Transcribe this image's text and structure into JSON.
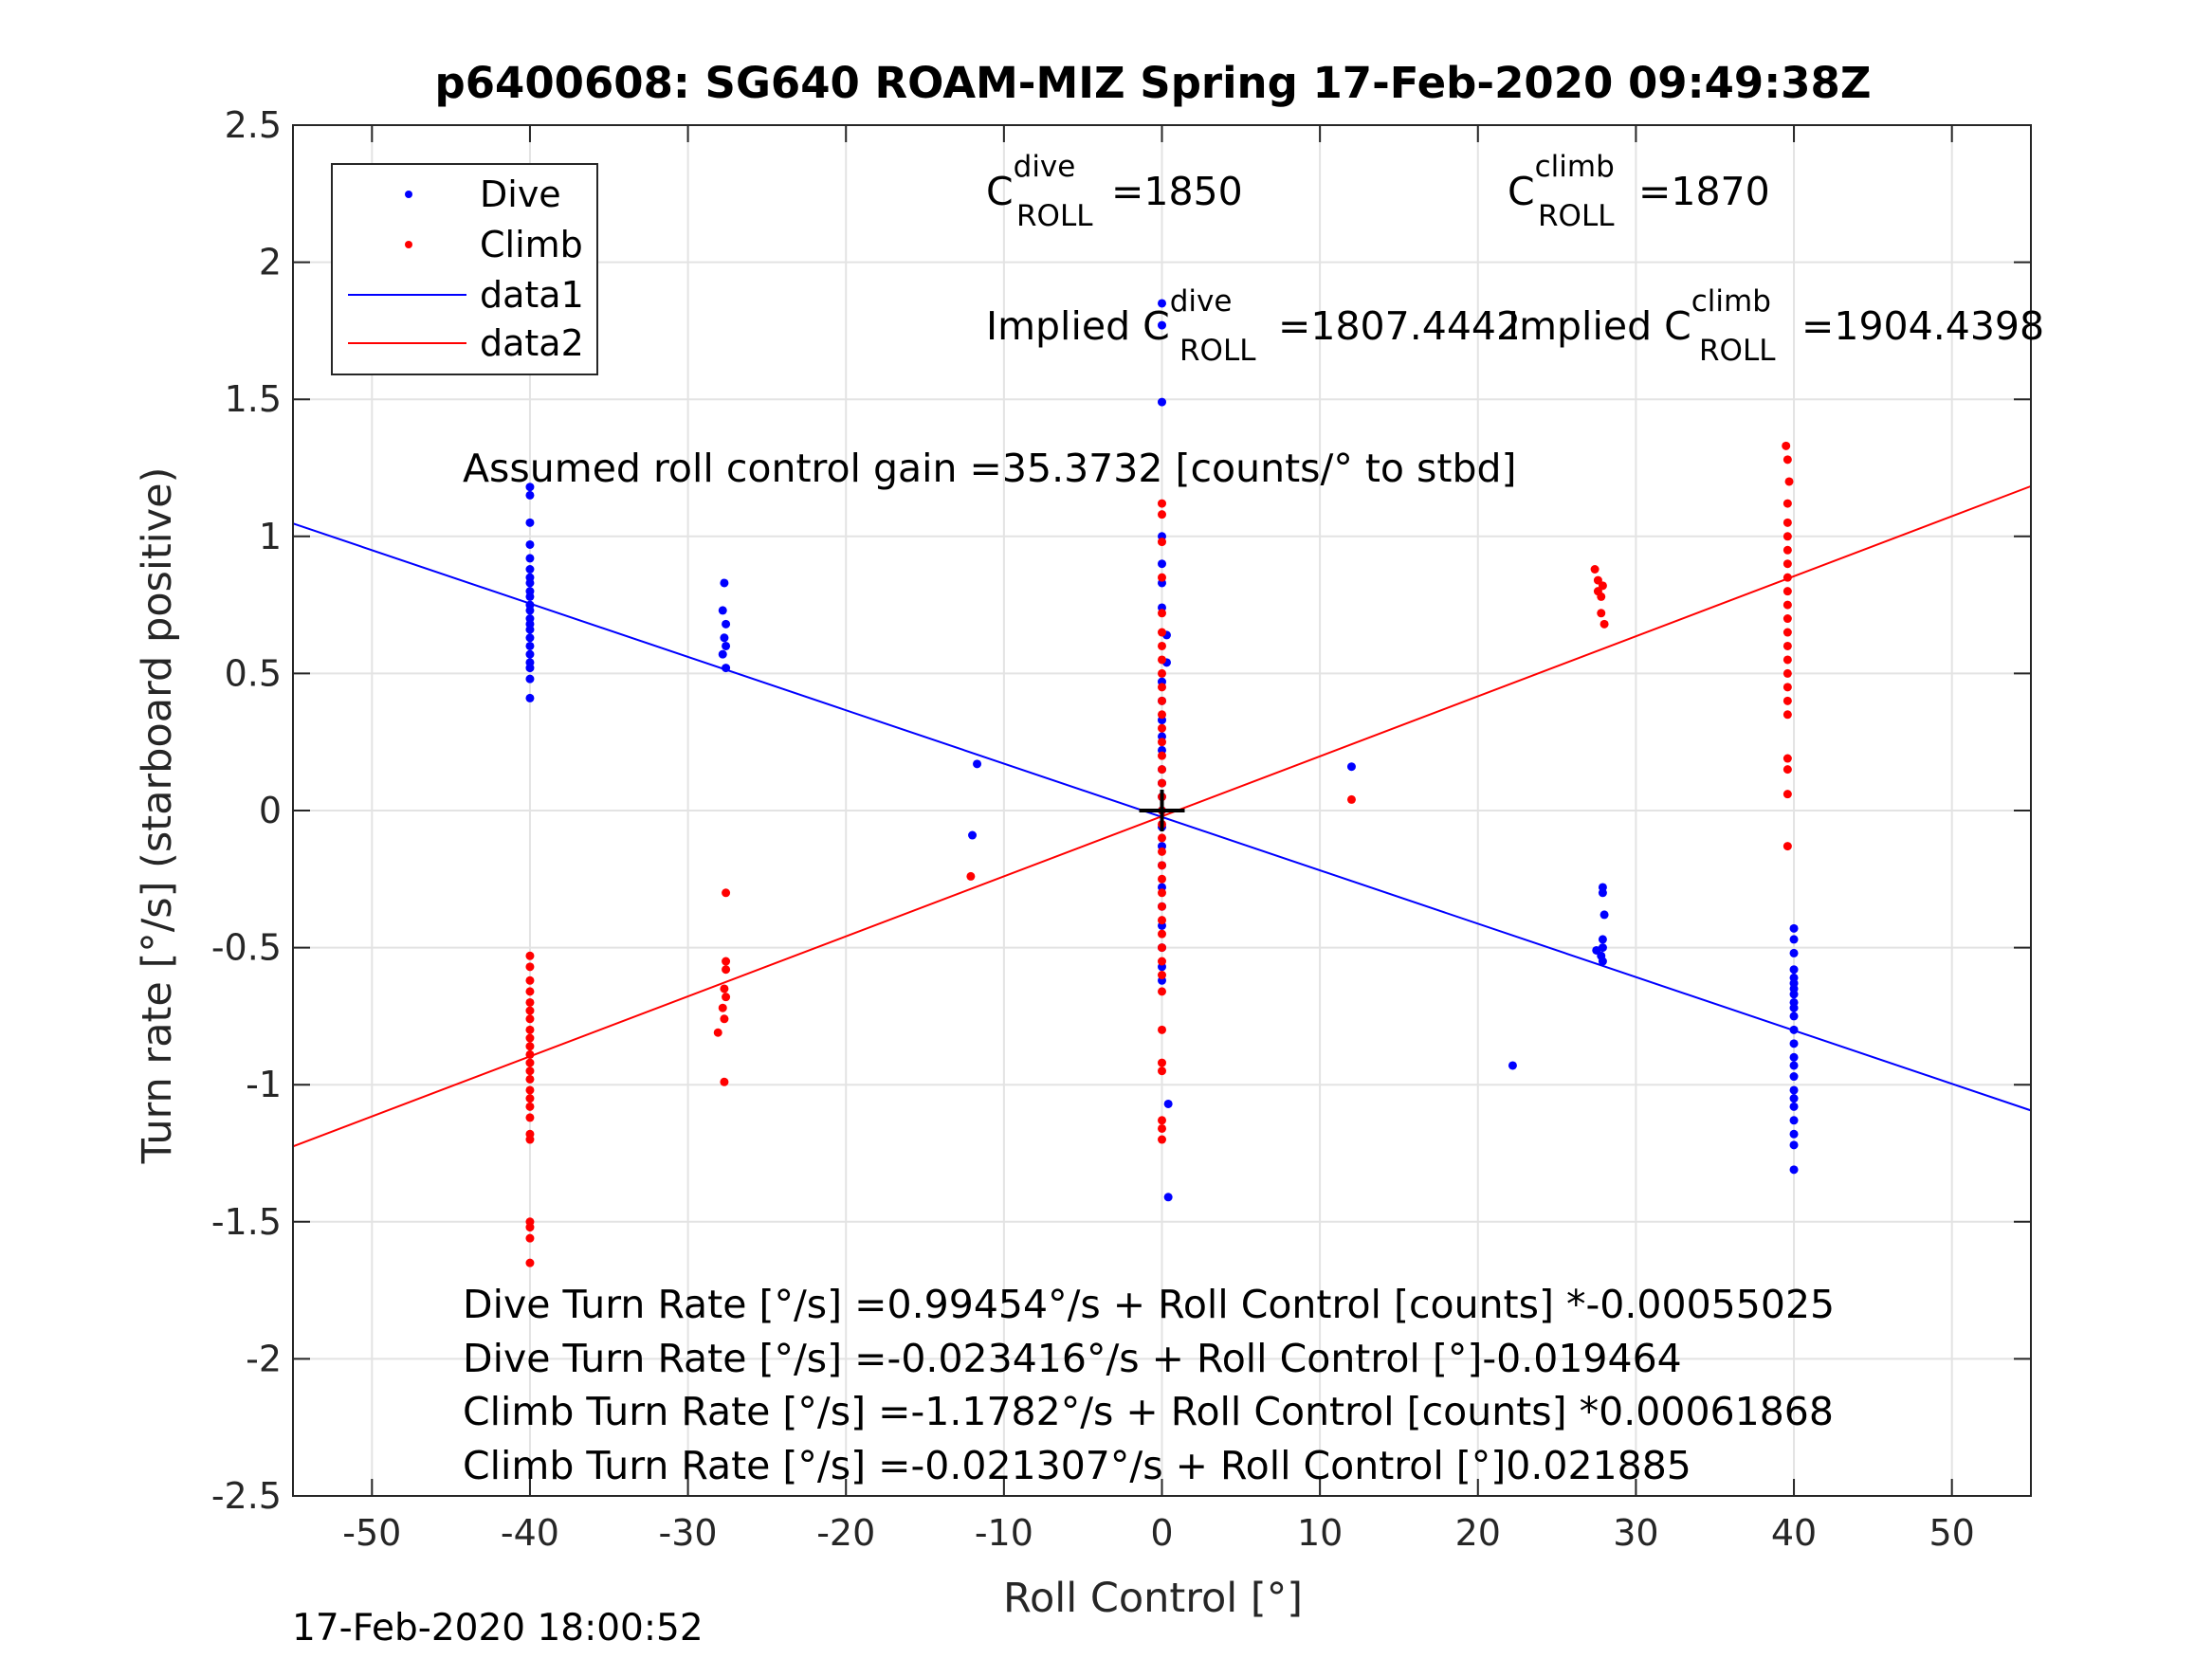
{
  "chart_data": {
    "type": "scatter",
    "title": "p6400608: SG640 ROAM-MIZ Spring 17-Feb-2020 09:49:38Z",
    "xlabel": "Roll Control [°]",
    "ylabel": "Turn rate [°/s] (starboard positive)",
    "xlim": [
      -55,
      55
    ],
    "ylim": [
      -2.5,
      2.5
    ],
    "xticks": [
      -50,
      -40,
      -30,
      -20,
      -10,
      0,
      10,
      20,
      30,
      40,
      50
    ],
    "yticks": [
      2.5,
      2,
      1.5,
      1,
      0.5,
      0,
      -0.5,
      -1,
      -1.5,
      -2,
      -2.5
    ],
    "xtick_labels": [
      "-50",
      "-40",
      "-30",
      "-20",
      "-10",
      "0",
      "10",
      "20",
      "30",
      "40",
      "50"
    ],
    "ytick_labels": [
      "2.5",
      "2",
      "1.5",
      "1",
      "0.5",
      "0",
      "-0.5",
      "-1",
      "-1.5",
      "-2",
      "-2.5"
    ],
    "grid": true,
    "legend_position": "top-left",
    "series": [
      {
        "name": "Dive",
        "kind": "points",
        "color": "#0000ff",
        "points": [
          [
            -40,
            1.18
          ],
          [
            -40,
            1.15
          ],
          [
            -40,
            1.05
          ],
          [
            -40,
            0.97
          ],
          [
            -40,
            0.92
          ],
          [
            -40,
            0.88
          ],
          [
            -40,
            0.85
          ],
          [
            -40,
            0.83
          ],
          [
            -40,
            0.8
          ],
          [
            -40,
            0.78
          ],
          [
            -40,
            0.75
          ],
          [
            -40,
            0.73
          ],
          [
            -40,
            0.7
          ],
          [
            -40,
            0.68
          ],
          [
            -40,
            0.66
          ],
          [
            -40,
            0.63
          ],
          [
            -40,
            0.6
          ],
          [
            -40,
            0.57
          ],
          [
            -40,
            0.54
          ],
          [
            -40,
            0.52
          ],
          [
            -40,
            0.48
          ],
          [
            -40,
            0.41
          ],
          [
            -27.7,
            0.83
          ],
          [
            -27.8,
            0.73
          ],
          [
            -27.6,
            0.68
          ],
          [
            -27.7,
            0.63
          ],
          [
            -27.6,
            0.6
          ],
          [
            -27.8,
            0.57
          ],
          [
            -27.6,
            0.52
          ],
          [
            -11.7,
            0.17
          ],
          [
            -12,
            -0.09
          ],
          [
            0,
            1.85
          ],
          [
            0,
            1.77
          ],
          [
            0,
            1.49
          ],
          [
            0,
            1.0
          ],
          [
            0,
            0.9
          ],
          [
            0,
            0.83
          ],
          [
            0,
            0.74
          ],
          [
            0.3,
            0.64
          ],
          [
            0.3,
            0.54
          ],
          [
            0,
            0.47
          ],
          [
            0,
            0.4
          ],
          [
            0,
            0.33
          ],
          [
            0,
            0.27
          ],
          [
            0,
            0.22
          ],
          [
            0,
            0.15
          ],
          [
            0,
            0.1
          ],
          [
            0,
            0.05
          ],
          [
            0,
            0.0
          ],
          [
            0,
            -0.06
          ],
          [
            0,
            -0.13
          ],
          [
            0,
            -0.2
          ],
          [
            0,
            -0.28
          ],
          [
            0,
            -0.35
          ],
          [
            0,
            -0.42
          ],
          [
            0,
            -0.5
          ],
          [
            0,
            -0.57
          ],
          [
            0,
            -0.62
          ],
          [
            0.4,
            -1.07
          ],
          [
            0.4,
            -1.41
          ],
          [
            12,
            0.16
          ],
          [
            22.2,
            -0.93
          ],
          [
            27.9,
            -0.28
          ],
          [
            27.9,
            -0.3
          ],
          [
            28,
            -0.38
          ],
          [
            27.9,
            -0.47
          ],
          [
            27.9,
            -0.5
          ],
          [
            27.5,
            -0.51
          ],
          [
            27.8,
            -0.53
          ],
          [
            27.9,
            -0.55
          ],
          [
            40,
            -0.43
          ],
          [
            40,
            -0.47
          ],
          [
            40,
            -0.52
          ],
          [
            40,
            -0.58
          ],
          [
            40,
            -0.61
          ],
          [
            40,
            -0.63
          ],
          [
            40,
            -0.65
          ],
          [
            40,
            -0.67
          ],
          [
            40,
            -0.7
          ],
          [
            40,
            -0.72
          ],
          [
            40,
            -0.75
          ],
          [
            40,
            -0.8
          ],
          [
            40,
            -0.85
          ],
          [
            40,
            -0.9
          ],
          [
            40,
            -0.93
          ],
          [
            40,
            -0.97
          ],
          [
            40,
            -1.02
          ],
          [
            40,
            -1.05
          ],
          [
            40,
            -1.08
          ],
          [
            40,
            -1.13
          ],
          [
            40,
            -1.18
          ],
          [
            40,
            -1.22
          ],
          [
            40,
            -1.31
          ]
        ]
      },
      {
        "name": "Climb",
        "kind": "points",
        "color": "#ff0000",
        "points": [
          [
            -40,
            -0.53
          ],
          [
            -40,
            -0.57
          ],
          [
            -40,
            -0.62
          ],
          [
            -40,
            -0.66
          ],
          [
            -40,
            -0.7
          ],
          [
            -40,
            -0.73
          ],
          [
            -40,
            -0.76
          ],
          [
            -40,
            -0.8
          ],
          [
            -40,
            -0.83
          ],
          [
            -40,
            -0.86
          ],
          [
            -40,
            -0.89
          ],
          [
            -40,
            -0.92
          ],
          [
            -40,
            -0.95
          ],
          [
            -40,
            -0.98
          ],
          [
            -40,
            -1.02
          ],
          [
            -40,
            -1.05
          ],
          [
            -40,
            -1.08
          ],
          [
            -40,
            -1.12
          ],
          [
            -40,
            -1.18
          ],
          [
            -40,
            -1.2
          ],
          [
            -40,
            -1.5
          ],
          [
            -40,
            -1.52
          ],
          [
            -40,
            -1.56
          ],
          [
            -40,
            -1.65
          ],
          [
            -27.6,
            -0.3
          ],
          [
            -27.6,
            -0.55
          ],
          [
            -27.6,
            -0.58
          ],
          [
            -27.7,
            -0.65
          ],
          [
            -27.6,
            -0.68
          ],
          [
            -27.8,
            -0.72
          ],
          [
            -27.7,
            -0.76
          ],
          [
            -28.1,
            -0.81
          ],
          [
            -27.7,
            -0.99
          ],
          [
            -12.1,
            -0.24
          ],
          [
            0,
            1.12
          ],
          [
            0,
            1.08
          ],
          [
            0,
            0.98
          ],
          [
            0,
            0.85
          ],
          [
            0,
            0.72
          ],
          [
            0,
            0.65
          ],
          [
            0,
            0.6
          ],
          [
            0,
            0.55
          ],
          [
            0,
            0.5
          ],
          [
            0,
            0.45
          ],
          [
            0,
            0.4
          ],
          [
            0,
            0.35
          ],
          [
            0,
            0.3
          ],
          [
            0,
            0.25
          ],
          [
            0,
            0.2
          ],
          [
            0,
            0.15
          ],
          [
            0,
            0.1
          ],
          [
            0,
            0.05
          ],
          [
            0,
            0.0
          ],
          [
            0,
            -0.05
          ],
          [
            0,
            -0.1
          ],
          [
            0,
            -0.15
          ],
          [
            0,
            -0.2
          ],
          [
            0,
            -0.25
          ],
          [
            0,
            -0.3
          ],
          [
            0,
            -0.35
          ],
          [
            0,
            -0.4
          ],
          [
            0,
            -0.45
          ],
          [
            0,
            -0.5
          ],
          [
            0,
            -0.55
          ],
          [
            0,
            -0.6
          ],
          [
            0,
            -0.66
          ],
          [
            0,
            -0.8
          ],
          [
            0,
            -0.92
          ],
          [
            0,
            -0.95
          ],
          [
            0,
            -1.13
          ],
          [
            0,
            -1.16
          ],
          [
            0,
            -1.2
          ],
          [
            12,
            0.04
          ],
          [
            27.4,
            0.88
          ],
          [
            27.6,
            0.84
          ],
          [
            27.9,
            0.82
          ],
          [
            27.6,
            0.8
          ],
          [
            27.8,
            0.78
          ],
          [
            27.8,
            0.72
          ],
          [
            28,
            0.68
          ],
          [
            39.5,
            1.33
          ],
          [
            39.6,
            1.28
          ],
          [
            39.7,
            1.2
          ],
          [
            39.6,
            1.12
          ],
          [
            39.6,
            1.05
          ],
          [
            39.6,
            1.0
          ],
          [
            39.6,
            0.95
          ],
          [
            39.6,
            0.9
          ],
          [
            39.6,
            0.85
          ],
          [
            39.6,
            0.8
          ],
          [
            39.6,
            0.75
          ],
          [
            39.6,
            0.7
          ],
          [
            39.6,
            0.65
          ],
          [
            39.6,
            0.6
          ],
          [
            39.6,
            0.55
          ],
          [
            39.6,
            0.5
          ],
          [
            39.6,
            0.45
          ],
          [
            39.6,
            0.4
          ],
          [
            39.6,
            0.35
          ],
          [
            39.6,
            0.19
          ],
          [
            39.6,
            0.15
          ],
          [
            39.6,
            0.06
          ],
          [
            39.6,
            -0.13
          ]
        ]
      },
      {
        "name": "data1",
        "kind": "line",
        "color": "#0000ff",
        "x": [
          -55,
          55
        ],
        "y": [
          1.047,
          -1.094
        ]
      },
      {
        "name": "data2",
        "kind": "line",
        "color": "#ff0000",
        "x": [
          -55,
          55
        ],
        "y": [
          -1.225,
          1.183
        ]
      }
    ],
    "origin_marker": [
      0,
      0
    ],
    "annotations": {
      "c_dive": {
        "base": "C",
        "sup": "dive",
        "sub": "ROLL",
        "value": "=1850"
      },
      "c_climb": {
        "base": "C",
        "sup": "climb",
        "sub": "ROLL",
        "value": "=1870"
      },
      "implied_dive": {
        "base": "Implied C",
        "sup": "dive",
        "sub": "ROLL",
        "value": "=1807.4442"
      },
      "implied_climb": {
        "base": "Implied C",
        "sup": "climb",
        "sub": "ROLL",
        "value": "=1904.4398"
      },
      "gain": "Assumed roll control gain =35.3732 [counts/° to stbd]",
      "equations": [
        "Dive Turn Rate [°/s] =0.99454°/s + Roll Control [counts] *-0.00055025",
        "Dive Turn Rate [°/s] =-0.023416°/s + Roll Control [°]-0.019464",
        "Climb Turn Rate [°/s] =-1.1782°/s + Roll Control [counts] *0.00061868",
        "Climb Turn Rate [°/s] =-0.021307°/s + Roll Control [°]0.021885"
      ]
    }
  },
  "timestamp": "17-Feb-2020 18:00:52"
}
